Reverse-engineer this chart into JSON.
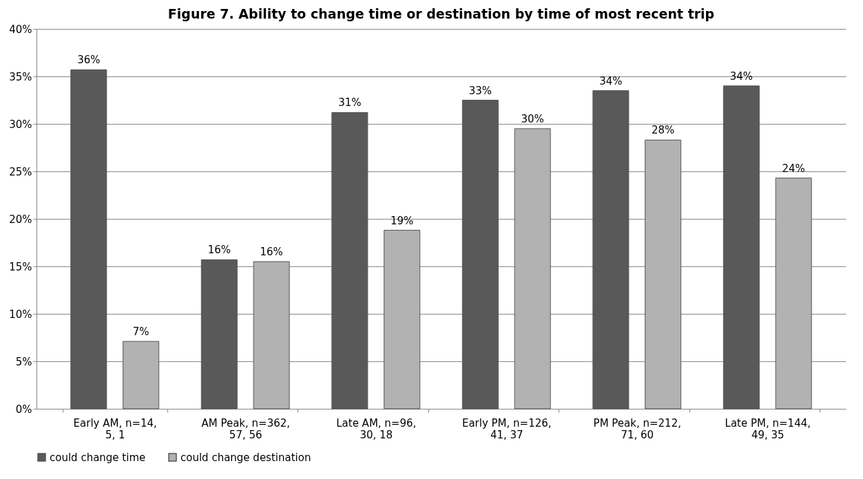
{
  "chart_data": {
    "type": "bar",
    "title": "Figure 7. Ability to change time or destination by time of most recent trip",
    "categories": [
      "Early AM, n=14, 5, 1",
      "AM Peak, n=362, 57, 56",
      "Late AM, n=96, 30, 18",
      "Early PM, n=126, 41, 37",
      "PM Peak, n=212, 71, 60",
      "Late PM, n=144, 49, 35"
    ],
    "series": [
      {
        "name": "could change time",
        "color": "#595959",
        "values": [
          35.7,
          15.7,
          31.2,
          32.5,
          33.5,
          34.0
        ],
        "value_labels": [
          "36%",
          "16%",
          "31%",
          "33%",
          "34%",
          "34%"
        ]
      },
      {
        "name": "could change destination",
        "color": "#b2b2b2",
        "values": [
          7.1,
          15.5,
          18.8,
          29.5,
          28.3,
          24.3
        ],
        "value_labels": [
          "7%",
          "16%",
          "19%",
          "30%",
          "28%",
          "24%"
        ]
      }
    ],
    "ylim": [
      0,
      40
    ],
    "yticks": [
      {
        "value": 0,
        "label": "0%"
      },
      {
        "value": 5,
        "label": "5%"
      },
      {
        "value": 10,
        "label": "10%"
      },
      {
        "value": 15,
        "label": "15%"
      },
      {
        "value": 20,
        "label": "20%"
      },
      {
        "value": 25,
        "label": "25%"
      },
      {
        "value": 30,
        "label": "30%"
      },
      {
        "value": 35,
        "label": "35%"
      },
      {
        "value": 40,
        "label": "40%"
      }
    ],
    "grid": "y",
    "legend": "bottom"
  }
}
